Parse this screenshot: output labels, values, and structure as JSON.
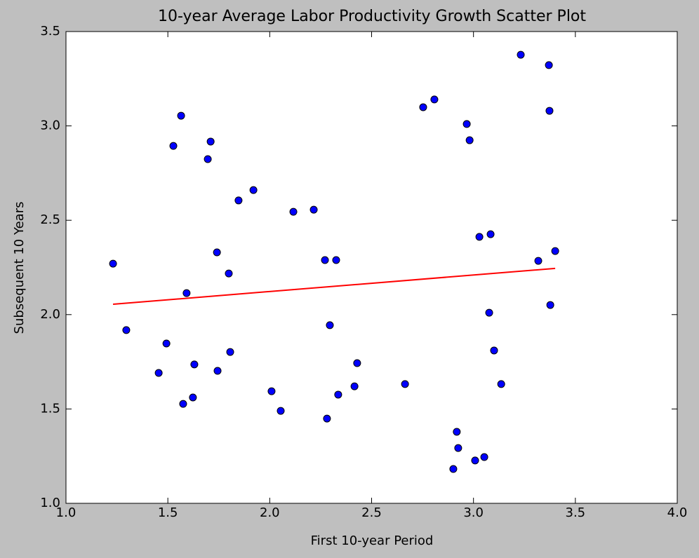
{
  "chart_data": {
    "type": "scatter",
    "title": "10-year Average Labor Productivity Growth Scatter Plot",
    "x_label": "First 10-year Period",
    "y_label": "Subsequent 10 Years",
    "series": [
      {
        "color": "#0000ff",
        "x": [
          1.231,
          1.296,
          1.455,
          1.493,
          1.527,
          1.565,
          1.575,
          1.592,
          1.623,
          1.63,
          1.696,
          1.71,
          1.741,
          1.744,
          1.799,
          1.806,
          1.847,
          1.92,
          2.009,
          2.054,
          2.116,
          2.216,
          2.271,
          2.281,
          2.295,
          2.326,
          2.336,
          2.416,
          2.429,
          2.664,
          2.753,
          2.808,
          2.901,
          2.918,
          2.925,
          2.967,
          2.981,
          3.008,
          3.029,
          3.053,
          3.077,
          3.084,
          3.101,
          3.136,
          3.232,
          3.318,
          3.37,
          3.373,
          3.377,
          3.401
        ],
        "values": [
          2.27,
          1.918,
          1.691,
          1.847,
          2.894,
          3.054,
          1.527,
          2.114,
          1.561,
          1.736,
          2.824,
          2.917,
          2.33,
          1.702,
          2.218,
          1.802,
          2.605,
          2.66,
          1.594,
          1.49,
          2.545,
          2.556,
          2.289,
          1.449,
          1.944,
          2.289,
          1.576,
          1.62,
          1.743,
          1.632,
          3.099,
          3.14,
          1.182,
          1.379,
          1.293,
          3.01,
          2.924,
          1.227,
          2.412,
          1.245,
          2.01,
          2.426,
          1.81,
          1.632,
          3.377,
          2.285,
          3.322,
          3.08,
          2.051,
          2.337
        ]
      }
    ],
    "fit": {
      "color": "#ff0000",
      "x": [
        1.231,
        3.401
      ],
      "values": [
        2.055,
        2.245
      ]
    },
    "xlim": [
      1,
      4
    ],
    "xticks": [
      {
        "value": 1,
        "label": "1.0"
      },
      1.5,
      {
        "value": 2,
        "label": "2.0"
      },
      2.5,
      {
        "value": 3,
        "label": "3.0"
      },
      3.5,
      {
        "value": 4,
        "label": "4.0"
      }
    ],
    "ylim": [
      1,
      3.5
    ],
    "yticks": [
      {
        "value": 1,
        "label": "1.0"
      },
      1.5,
      {
        "value": 2,
        "label": "2.0"
      },
      2.5,
      {
        "value": 3,
        "label": "3.0"
      },
      3.5
    ]
  }
}
